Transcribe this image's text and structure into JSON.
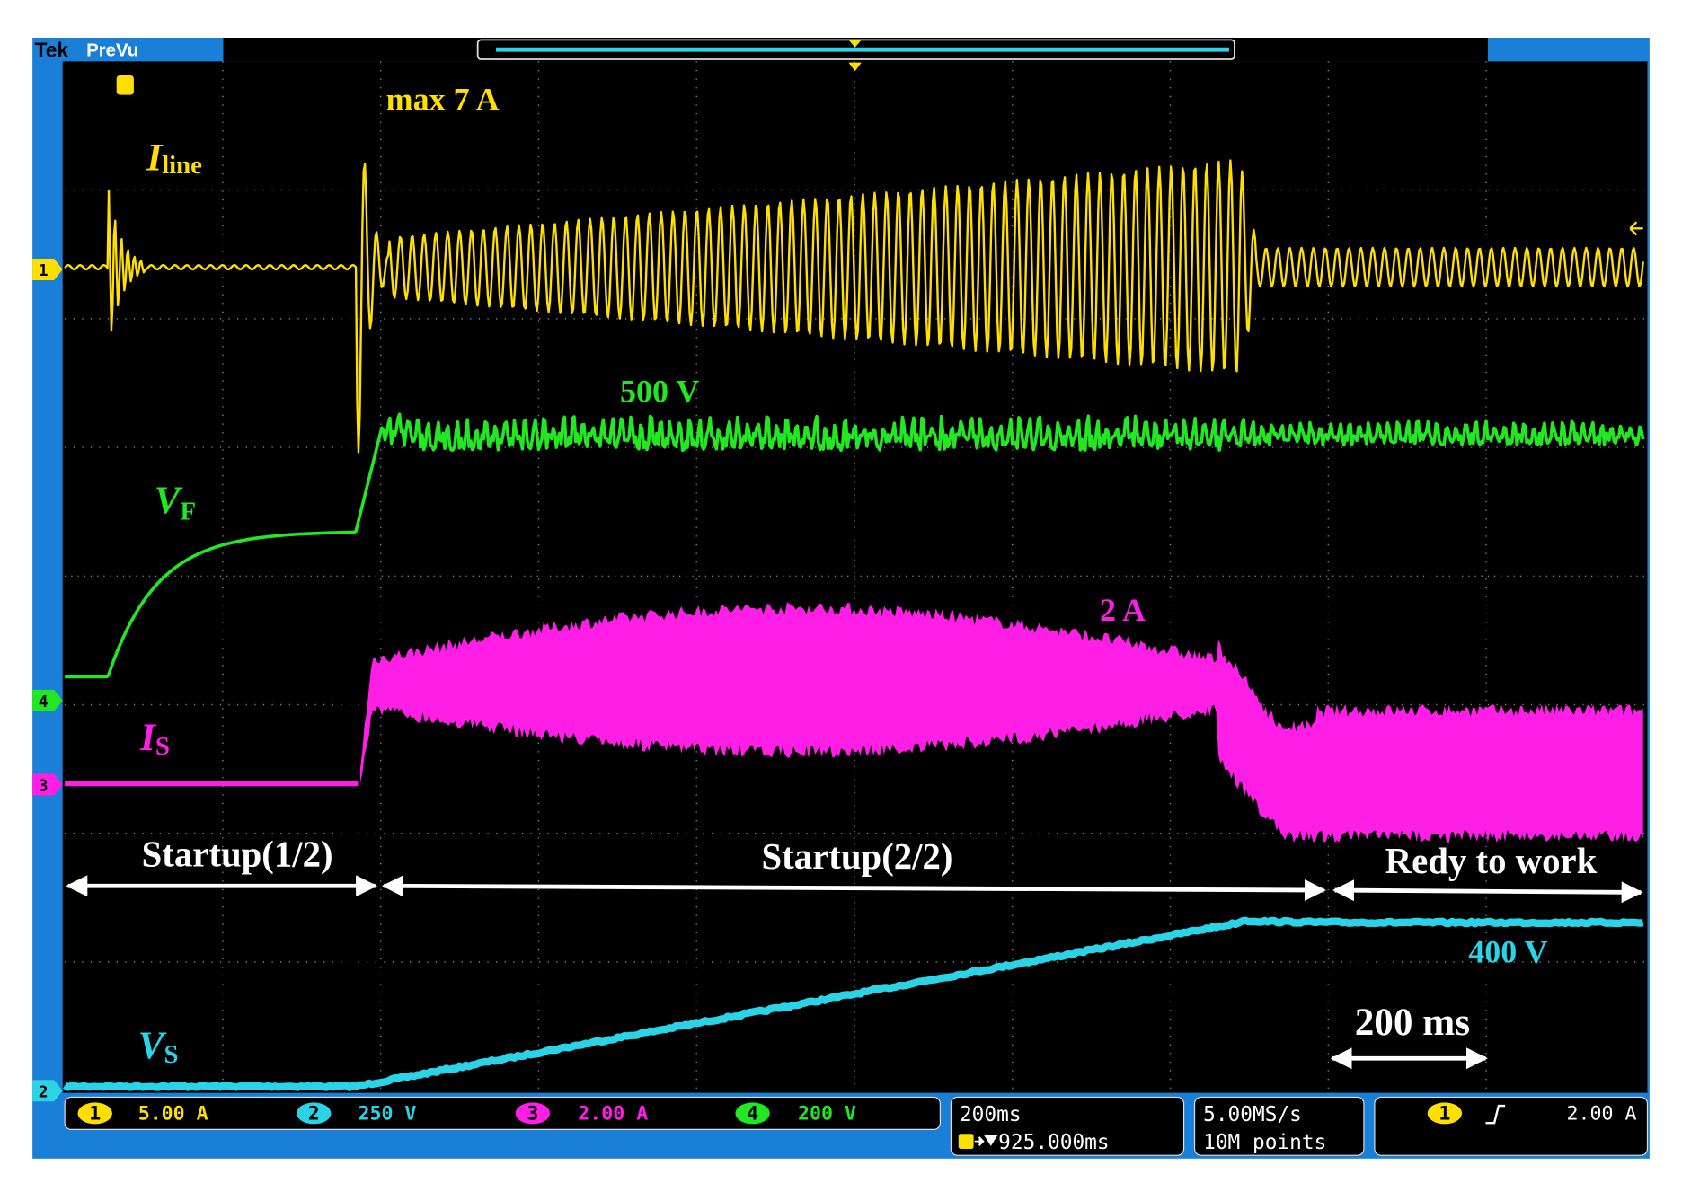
{
  "header": {
    "brand": "Tek",
    "mode": "PreVu"
  },
  "traces": [
    {
      "symbol": "I",
      "subscript": "line",
      "annotation": "max 7 A"
    },
    {
      "symbol": "V",
      "subscript": "F",
      "annotation": "500 V"
    },
    {
      "symbol": "I",
      "subscript": "S",
      "annotation": "2 A"
    },
    {
      "symbol": "V",
      "subscript": "S",
      "annotation": "400 V"
    }
  ],
  "markers": [
    "1",
    "4",
    "3",
    "2"
  ],
  "phases": [
    "Startup(1/2)",
    "Startup(2/2)",
    "Redy to work"
  ],
  "time_scale_note": "200 ms",
  "status_bar": {
    "channels": [
      {
        "number": "1",
        "scale": "5.00 A"
      },
      {
        "number": "2",
        "scale": "250 V"
      },
      {
        "number": "3",
        "scale": "2.00 A"
      },
      {
        "number": "4",
        "scale": "200 V"
      }
    ],
    "timebase": {
      "scale": "200ms",
      "position": "925.000ms"
    },
    "acquisition": {
      "rate": "5.00MS/s",
      "length": "10M points"
    },
    "trigger": {
      "channel": "1",
      "level": "2.00 A"
    }
  }
}
